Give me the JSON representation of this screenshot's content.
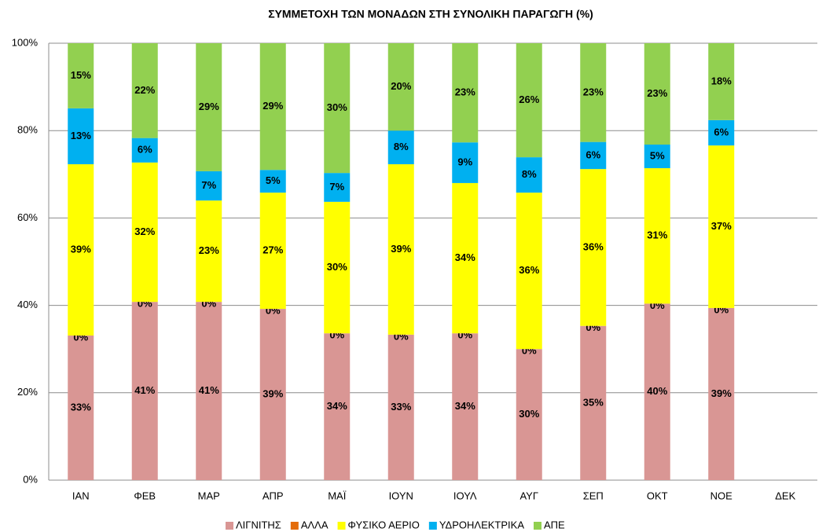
{
  "chart_data": {
    "type": "stacked_bar",
    "title": "ΣΥΜΜΕΤΟΧΗ ΤΩΝ ΜΟΝΑΔΩΝ ΣΤΗ ΣΥΝΟΛΙΚΗ ΠΑΡΑΓΩΓΗ (%)",
    "categories": [
      "ΙΑΝ",
      "ΦΕΒ",
      "ΜΑΡ",
      "ΑΠΡ",
      "ΜΑΪ",
      "ΙΟΥΝ",
      "ΙΟΥΛ",
      "ΑΥΓ",
      "ΣΕΠ",
      "ΟΚΤ",
      "ΝΟΕ",
      "ΔΕΚ"
    ],
    "series": [
      {
        "name": "ΛΙΓΝΙΤΗΣ",
        "color": "#d99694",
        "values": [
          33.1,
          40.8,
          40.8,
          39.2,
          33.6,
          33.3,
          33.6,
          30.0,
          35.3,
          40.4,
          39.4,
          null
        ],
        "value_labels": [
          "33%",
          "41%",
          "41%",
          "39%",
          "34%",
          "33%",
          "34%",
          "30%",
          "35%",
          "40%",
          "39%",
          null
        ]
      },
      {
        "name": "ΑΛΛΑ",
        "color": "#e46c0a",
        "values": [
          0,
          0,
          0,
          0,
          0,
          0,
          0,
          0,
          0,
          0,
          0,
          null
        ],
        "value_labels": [
          "0%",
          "0%",
          "0%",
          "0%",
          "0%",
          "0%",
          "0%",
          "0%",
          "0%",
          "0%",
          "0%",
          null
        ]
      },
      {
        "name": "ΦΥΣΙΚΟ ΑΕΡΙΟ",
        "color": "#ffff00",
        "values": [
          39.2,
          31.9,
          23.2,
          26.6,
          30.1,
          39.0,
          34.4,
          35.8,
          35.9,
          31.0,
          37.2,
          null
        ],
        "value_labels": [
          "39%",
          "32%",
          "23%",
          "27%",
          "30%",
          "39%",
          "34%",
          "36%",
          "36%",
          "31%",
          "37%",
          null
        ]
      },
      {
        "name": "ΥΔΡΟΗΛΕΚΤΡΙΚΑ",
        "color": "#00b0f0",
        "values": [
          12.8,
          5.6,
          6.7,
          5.2,
          6.6,
          7.7,
          9.3,
          8.1,
          6.2,
          5.4,
          5.8,
          null
        ],
        "value_labels": [
          "13%",
          "6%",
          "7%",
          "5%",
          "7%",
          "8%",
          "9%",
          "8%",
          "6%",
          "5%",
          "6%",
          null
        ]
      },
      {
        "name": "ΑΠΕ",
        "color": "#92d050",
        "values": [
          14.9,
          21.7,
          29.3,
          29.0,
          29.7,
          20.0,
          22.7,
          26.1,
          22.6,
          23.2,
          17.6,
          null
        ],
        "value_labels": [
          "15%",
          "22%",
          "29%",
          "29%",
          "30%",
          "20%",
          "23%",
          "26%",
          "23%",
          "23%",
          "18%",
          null
        ]
      }
    ],
    "ylim": [
      0,
      100
    ],
    "yticks": [
      {
        "value": 0,
        "label": "0%"
      },
      {
        "value": 20,
        "label": "20%"
      },
      {
        "value": 40,
        "label": "40%"
      },
      {
        "value": 60,
        "label": "60%"
      },
      {
        "value": 80,
        "label": "80%"
      },
      {
        "value": 100,
        "label": "100%"
      }
    ],
    "grid": true,
    "legend": "bottom"
  }
}
